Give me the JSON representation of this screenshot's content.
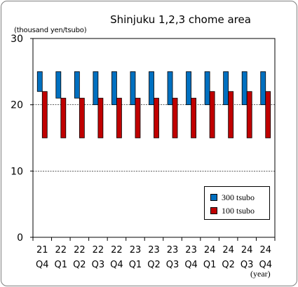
{
  "chart_data": {
    "type": "bar",
    "title": "Shinjuku 1,2,3 chome area",
    "ylabel": "(thousand yen/tsubo)",
    "xlabel": "(year)",
    "ylim": [
      0,
      30
    ],
    "yticks": [
      0,
      10,
      20,
      30
    ],
    "gridlines": [
      10,
      20
    ],
    "categories": [
      {
        "year": "21",
        "quarter": "Q4"
      },
      {
        "year": "22",
        "quarter": "Q1"
      },
      {
        "year": "22",
        "quarter": "Q2"
      },
      {
        "year": "22",
        "quarter": "Q3"
      },
      {
        "year": "22",
        "quarter": "Q4"
      },
      {
        "year": "23",
        "quarter": "Q1"
      },
      {
        "year": "23",
        "quarter": "Q2"
      },
      {
        "year": "23",
        "quarter": "Q3"
      },
      {
        "year": "23",
        "quarter": "Q4"
      },
      {
        "year": "24",
        "quarter": "Q1"
      },
      {
        "year": "24",
        "quarter": "Q2"
      },
      {
        "year": "24",
        "quarter": "Q3"
      },
      {
        "year": "24",
        "quarter": "Q4"
      }
    ],
    "series": [
      {
        "name": "300 tsubo",
        "color": "#0070c0",
        "ranges": [
          [
            22,
            25
          ],
          [
            21,
            25
          ],
          [
            21,
            25
          ],
          [
            20,
            25
          ],
          [
            20,
            25
          ],
          [
            20,
            25
          ],
          [
            20,
            25
          ],
          [
            20,
            25
          ],
          [
            20,
            25
          ],
          [
            20,
            25
          ],
          [
            20,
            25
          ],
          [
            20,
            25
          ],
          [
            20,
            25
          ]
        ]
      },
      {
        "name": "100 tsubo",
        "color": "#c00000",
        "ranges": [
          [
            15,
            22
          ],
          [
            15,
            21
          ],
          [
            15,
            21
          ],
          [
            15,
            21
          ],
          [
            15,
            21
          ],
          [
            15,
            21
          ],
          [
            15,
            21
          ],
          [
            15,
            21
          ],
          [
            15,
            21
          ],
          [
            15,
            22
          ],
          [
            15,
            22
          ],
          [
            15,
            22
          ],
          [
            15,
            22
          ]
        ]
      }
    ],
    "legend_position": "bottom-right"
  }
}
